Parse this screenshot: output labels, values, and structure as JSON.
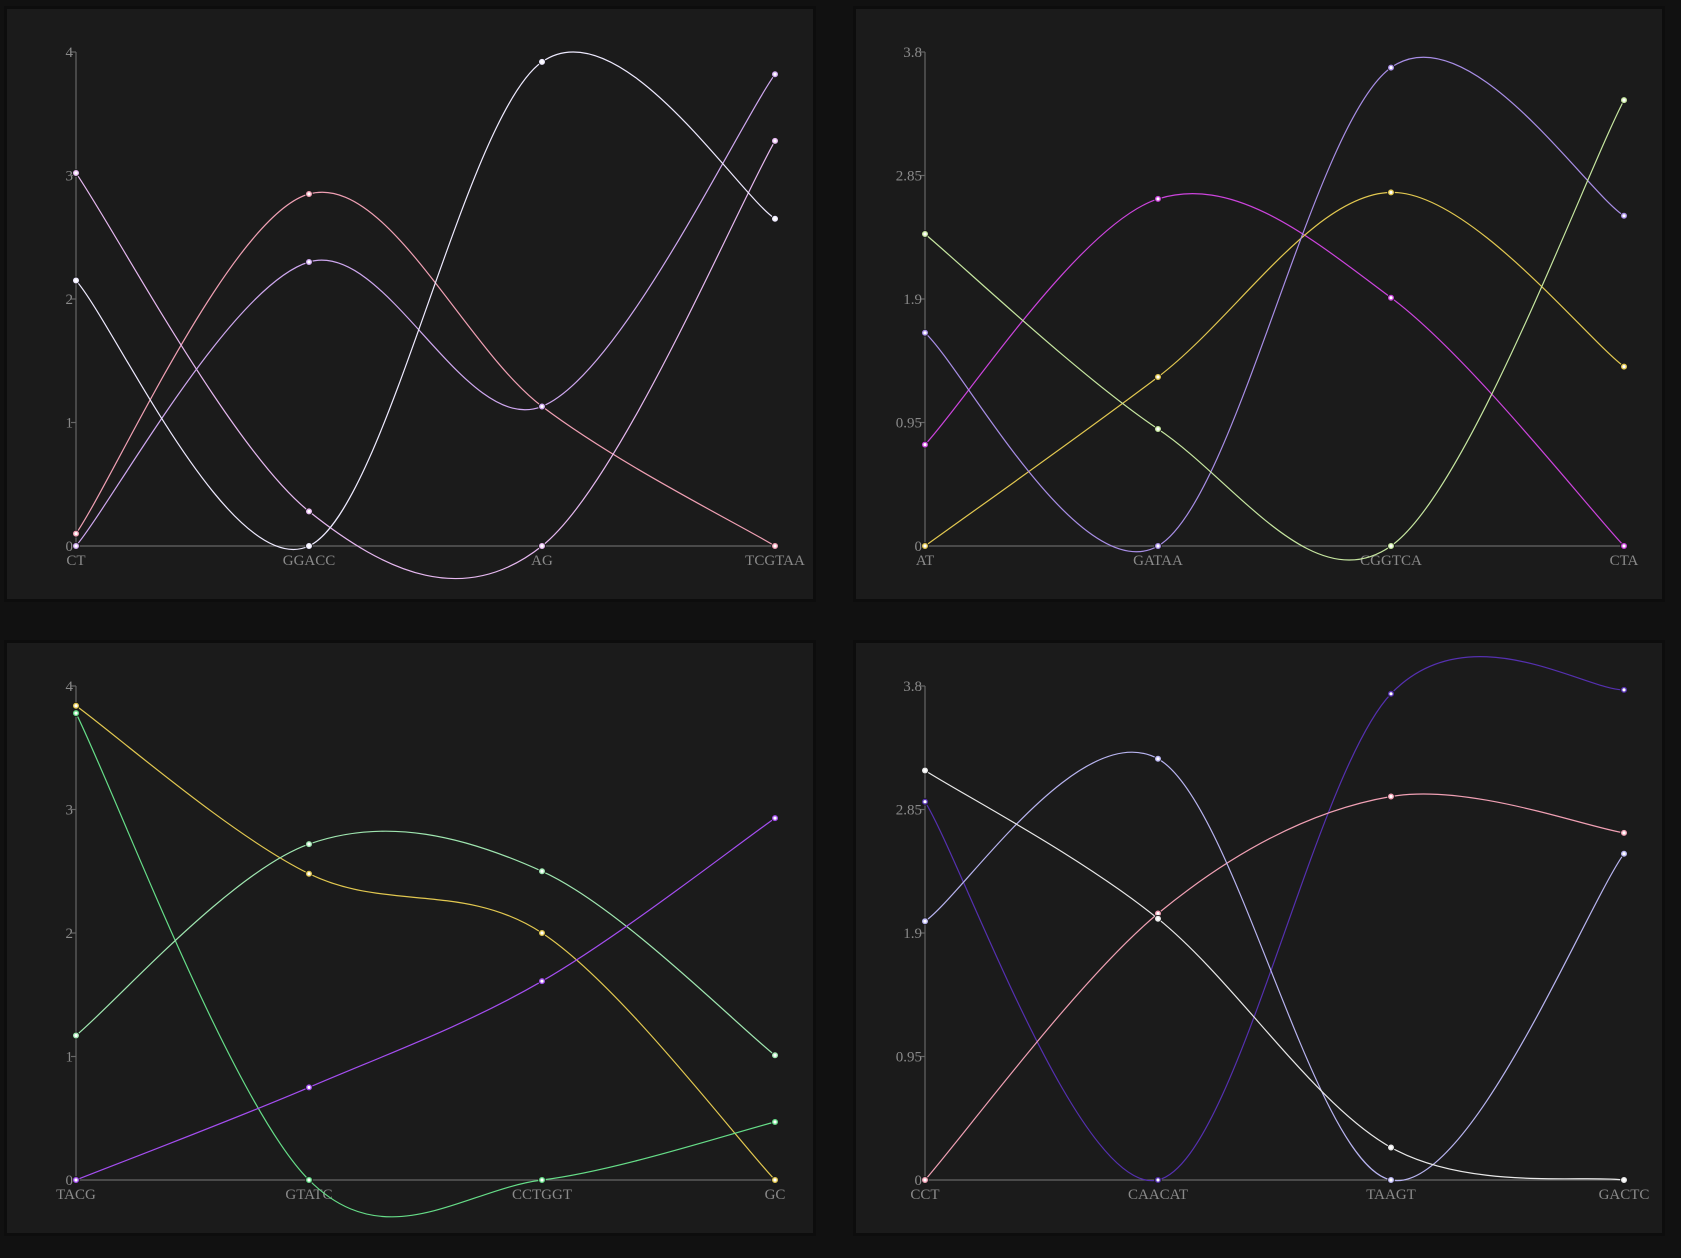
{
  "colors": {
    "background": "#111111",
    "panel": "#1b1b1b",
    "axis": "#666666",
    "tick_text": "#8a8a8a"
  },
  "chart_data": [
    {
      "type": "line",
      "categories": [
        "CT",
        "GGACC",
        "AG",
        "TCGTAA"
      ],
      "ylim": [
        0,
        4
      ],
      "yticks": [
        "0",
        "1",
        "2",
        "3",
        "4"
      ],
      "grid": false,
      "series": [
        {
          "color": "#f0a0b4",
          "values": [
            0.1,
            2.85,
            1.13,
            0
          ]
        },
        {
          "color": "#e6b8f0",
          "values": [
            3.02,
            0.28,
            0,
            3.28
          ]
        },
        {
          "color": "#cfa8f0",
          "values": [
            0,
            2.3,
            1.13,
            3.82
          ]
        },
        {
          "color": "#eeeaff",
          "values": [
            2.15,
            0,
            3.92,
            2.65
          ]
        }
      ]
    },
    {
      "type": "line",
      "categories": [
        "AT",
        "GATAA",
        "CGGTCA",
        "CTA"
      ],
      "ylim": [
        0,
        3.8
      ],
      "yticks": [
        "0",
        "0.95",
        "1.9",
        "2.85",
        "3.8"
      ],
      "grid": false,
      "series": [
        {
          "color": "#cc44dd",
          "values": [
            0.78,
            2.67,
            1.91,
            0
          ]
        },
        {
          "color": "#e2c850",
          "values": [
            0,
            1.3,
            2.72,
            1.38
          ]
        },
        {
          "color": "#a88ee6",
          "values": [
            1.64,
            0,
            3.68,
            2.54
          ]
        },
        {
          "color": "#c6e6a0",
          "values": [
            2.4,
            0.9,
            0,
            3.43
          ]
        }
      ]
    },
    {
      "type": "line",
      "categories": [
        "TACG",
        "GTATC",
        "CCTGGT",
        "GC"
      ],
      "ylim": [
        0,
        4
      ],
      "yticks": [
        "0",
        "1",
        "2",
        "3",
        "4"
      ],
      "grid": false,
      "series": [
        {
          "color": "#e2c850",
          "values": [
            3.84,
            2.48,
            2.0,
            0
          ]
        },
        {
          "color": "#66dd88",
          "values": [
            3.78,
            0,
            0,
            0.47
          ]
        },
        {
          "color": "#9fe6b0",
          "values": [
            1.17,
            2.72,
            2.5,
            1.01
          ]
        },
        {
          "color": "#a44ef0",
          "values": [
            0,
            0.75,
            1.61,
            2.93
          ]
        }
      ]
    },
    {
      "type": "line",
      "categories": [
        "CCT",
        "CAACAT",
        "TAAGT",
        "GACTC"
      ],
      "ylim": [
        0,
        3.8
      ],
      "yticks": [
        "0",
        "0.95",
        "1.9",
        "2.85",
        "3.8"
      ],
      "grid": false,
      "series": [
        {
          "color": "#5530b0",
          "values": [
            2.91,
            0,
            3.74,
            3.77
          ]
        },
        {
          "color": "#f0a0b4",
          "values": [
            0,
            2.05,
            2.95,
            2.67
          ]
        },
        {
          "color": "#b8b4f0",
          "values": [
            1.99,
            3.24,
            0,
            2.51
          ]
        },
        {
          "color": "#e8e8e8",
          "values": [
            3.15,
            2.01,
            0.25,
            0
          ]
        }
      ]
    }
  ]
}
